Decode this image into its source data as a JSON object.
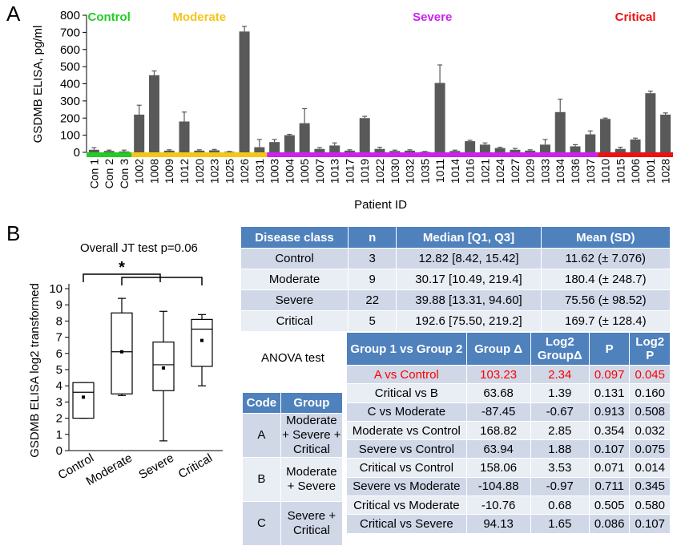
{
  "panels": {
    "a": "A",
    "b": "B"
  },
  "chart_data": [
    {
      "type": "bar",
      "ylabel": "GSDMB ELISA, pg/ml",
      "xlabel": "Patient ID",
      "ylim": [
        0,
        800
      ],
      "yticks": [
        0,
        100,
        200,
        300,
        400,
        500,
        600,
        700,
        800
      ],
      "groups": [
        {
          "name": "Control",
          "color": "#22CC22",
          "start": 0,
          "end": 2
        },
        {
          "name": "Moderate",
          "color": "#F5C518",
          "start": 3,
          "end": 11
        },
        {
          "name": "Severe",
          "color": "#CC22EE",
          "start": 12,
          "end": 33
        },
        {
          "name": "Critical",
          "color": "#EE1111",
          "start": 34,
          "end": 38
        }
      ],
      "categories": [
        "Con 1",
        "Con 2",
        "Con 3",
        "1002",
        "1008",
        "1009",
        "1012",
        "1020",
        "1023",
        "1025",
        "1026",
        "1031",
        "1003",
        "1004",
        "1005",
        "1007",
        "1013",
        "1017",
        "1019",
        "1022",
        "1030",
        "1032",
        "1035",
        "1011",
        "1014",
        "1016",
        "1021",
        "1024",
        "1027",
        "1029",
        "1033",
        "1034",
        "1036",
        "1037",
        "1010",
        "1015",
        "1006",
        "1001",
        "1028"
      ],
      "values": [
        15,
        8,
        5,
        220,
        450,
        10,
        180,
        10,
        12,
        3,
        705,
        30,
        60,
        100,
        170,
        20,
        40,
        10,
        200,
        20,
        8,
        10,
        3,
        405,
        8,
        65,
        45,
        25,
        15,
        10,
        45,
        235,
        35,
        105,
        195,
        20,
        75,
        345,
        220
      ],
      "errors": [
        12,
        5,
        8,
        55,
        25,
        5,
        55,
        5,
        5,
        2,
        30,
        45,
        15,
        5,
        85,
        8,
        15,
        5,
        10,
        10,
        5,
        5,
        2,
        105,
        5,
        5,
        10,
        5,
        8,
        5,
        30,
        75,
        10,
        20,
        5,
        10,
        8,
        12,
        10
      ]
    },
    {
      "type": "box",
      "title": "Overall JT test p=0.06",
      "ylabel": "GSDMB ELISA log2 transformed",
      "ylim": [
        0,
        10
      ],
      "yticks": [
        0,
        1,
        2,
        3,
        4,
        5,
        6,
        7,
        8,
        9,
        10
      ],
      "categories": [
        "Control",
        "Moderate",
        "Severe",
        "Critical"
      ],
      "boxes": [
        {
          "min": 2.0,
          "q1": 2.0,
          "median": 3.6,
          "q3": 4.2,
          "max": 4.2,
          "mean": 3.3
        },
        {
          "min": 3.4,
          "q1": 3.5,
          "median": 6.1,
          "q3": 8.5,
          "max": 9.4,
          "mean": 6.1
        },
        {
          "min": 0.6,
          "q1": 3.7,
          "median": 5.3,
          "q3": 6.7,
          "max": 8.6,
          "mean": 5.1
        },
        {
          "min": 4.0,
          "q1": 5.2,
          "median": 7.5,
          "q3": 8.1,
          "max": 8.4,
          "mean": 6.8
        }
      ],
      "significance": "*"
    }
  ],
  "table_summary": {
    "headers": [
      "Disease class",
      "n",
      "Median [Q1, Q3]",
      "Mean (SD)"
    ],
    "rows": [
      [
        "Control",
        "3",
        "12.82 [8.42, 15.42]",
        "11.62 (± 7.076)"
      ],
      [
        "Moderate",
        "9",
        "30.17 [10.49, 219.4]",
        "180.4 (± 248.7)"
      ],
      [
        "Severe",
        "22",
        "39.88 [13.31, 94.60]",
        "75.56 (± 98.52)"
      ],
      [
        "Critical",
        "5",
        "192.6 [75.50, 219.2]",
        "169.7 (± 128.4)"
      ]
    ]
  },
  "anova_label": "ANOVA test",
  "table_anova": {
    "headers": [
      "Group 1 vs Group 2",
      "Group Δ",
      "Log2 GroupΔ",
      "P",
      "Log2 P"
    ],
    "rows": [
      [
        "A vs Control",
        "103.23",
        "2.34",
        "0.097",
        "0.045"
      ],
      [
        "Critical vs B",
        "63.68",
        "1.39",
        "0.131",
        "0.160"
      ],
      [
        "C vs Moderate",
        "-87.45",
        "-0.67",
        "0.913",
        "0.508"
      ],
      [
        "Moderate vs Control",
        "168.82",
        "2.85",
        "0.354",
        "0.032"
      ],
      [
        "Severe vs Control",
        "63.94",
        "1.88",
        "0.107",
        "0.075"
      ],
      [
        "Critical vs Control",
        "158.06",
        "3.53",
        "0.071",
        "0.014"
      ],
      [
        "Severe vs Moderate",
        "-104.88",
        "-0.97",
        "0.711",
        "0.345"
      ],
      [
        "Critical vs Moderate",
        "-10.76",
        "0.68",
        "0.505",
        "0.580"
      ],
      [
        "Critical vs Severe",
        "94.13",
        "1.65",
        "0.086",
        "0.107"
      ]
    ]
  },
  "table_codes": {
    "headers": [
      "Code",
      "Group"
    ],
    "rows": [
      [
        "A",
        "Moderate + Severe + Critical"
      ],
      [
        "B",
        "Moderate + Severe"
      ],
      [
        "C",
        "Severe + Critical"
      ]
    ]
  }
}
